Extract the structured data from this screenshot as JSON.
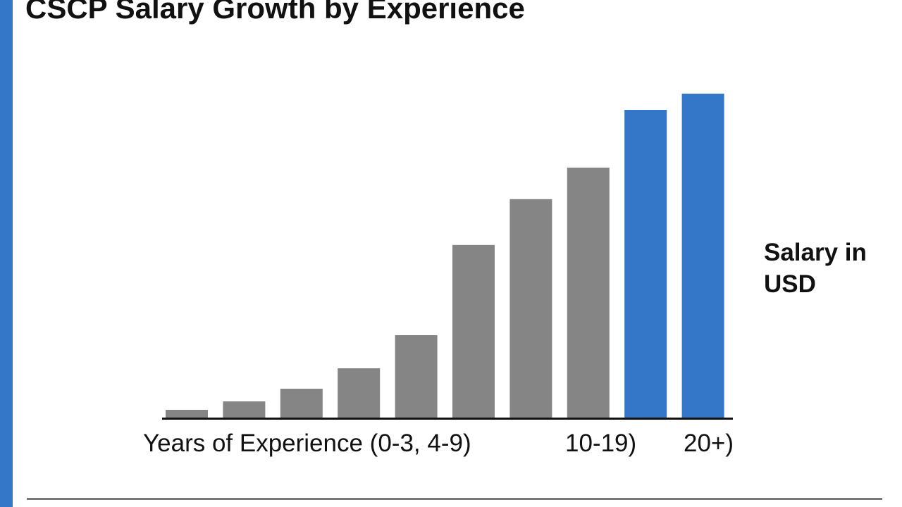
{
  "chart_data": {
    "type": "bar",
    "title": "CSCP Salary Growth by Experience",
    "xlabel_parts": [
      "Years of Experience (0-3, 4-9)",
      "10-19)",
      "20+)"
    ],
    "ylabel": "Salary in USD",
    "ylim": [
      0,
      100
    ],
    "values": [
      2.6,
      5.2,
      9.1,
      15.4,
      25.6,
      53.4,
      67.5,
      77.2,
      95.0,
      100.0
    ],
    "bar_colors": [
      "#858585",
      "#858585",
      "#858585",
      "#858585",
      "#858585",
      "#858585",
      "#858585",
      "#858585",
      "#3476c8",
      "#3476c8"
    ],
    "grid": false,
    "legend": "none"
  },
  "colors": {
    "accent": "#3476c8",
    "bar_gray": "#858585"
  }
}
